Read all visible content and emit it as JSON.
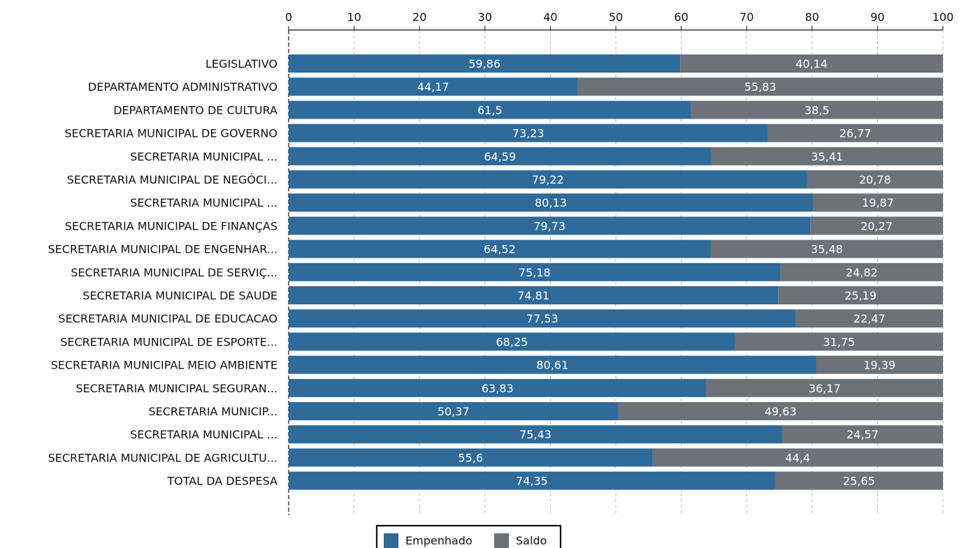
{
  "chart_data": {
    "type": "bar",
    "orientation": "horizontal",
    "stacked": true,
    "xlim": [
      0,
      100
    ],
    "x_ticks": [
      "0",
      "10",
      "20",
      "30",
      "40",
      "50",
      "60",
      "70",
      "80",
      "90",
      "100"
    ],
    "grid": "vertical dashed",
    "categories": [
      "LEGISLATIVO",
      "DEPARTAMENTO ADMINISTRATIVO",
      "DEPARTAMENTO DE CULTURA",
      "SECRETARIA MUNICIPAL DE GOVERNO",
      "SECRETARIA MUNICIPAL ...",
      "SECRETARIA MUNICIPAL DE NEGÓCI...",
      "SECRETARIA MUNICIPAL ...",
      "SECRETARIA MUNICIPAL DE FINANÇAS",
      "SECRETARIA MUNICIPAL DE ENGENHAR...",
      "SECRETARIA MUNICIPAL DE SERVIÇ...",
      "SECRETARIA MUNICIPAL DE SAUDE",
      "SECRETARIA MUNICIPAL DE EDUCACAO",
      "SECRETARIA MUNICIPAL DE ESPORTE...",
      "SECRETARIA MUNICIPAL MEIO AMBIENTE",
      "SECRETARIA MUNICIPAL SEGURAN...",
      "SECRETARIA MUNICIP...",
      "SECRETARIA MUNICIPAL ...",
      "SECRETARIA MUNICIPAL DE AGRICULTU...",
      "TOTAL DA DESPESA"
    ],
    "series": [
      {
        "name": "Empenhado",
        "color": "#2e6a9a",
        "values": [
          59.86,
          44.17,
          61.5,
          73.23,
          64.59,
          79.22,
          80.13,
          79.73,
          64.52,
          75.18,
          74.81,
          77.53,
          68.25,
          80.61,
          63.83,
          50.37,
          75.43,
          55.6,
          74.35
        ],
        "labels": [
          "59,86",
          "44,17",
          "61,5",
          "73,23",
          "64,59",
          "79,22",
          "80,13",
          "79,73",
          "64,52",
          "75,18",
          "74,81",
          "77,53",
          "68,25",
          "80,61",
          "63,83",
          "50,37",
          "75,43",
          "55,6",
          "74,35"
        ]
      },
      {
        "name": "Saldo",
        "color": "#6c7278",
        "values": [
          40.14,
          55.83,
          38.5,
          26.77,
          35.41,
          20.78,
          19.87,
          20.27,
          35.48,
          24.82,
          25.19,
          22.47,
          31.75,
          19.39,
          36.17,
          49.63,
          24.57,
          44.4,
          25.65
        ],
        "labels": [
          "40,14",
          "55,83",
          "38,5",
          "26,77",
          "35,41",
          "20,78",
          "19,87",
          "20,27",
          "35,48",
          "24,82",
          "25,19",
          "22,47",
          "31,75",
          "19,39",
          "36,17",
          "49,63",
          "24,57",
          "44,4",
          "25,65"
        ]
      }
    ],
    "legend": {
      "position": "bottom",
      "entries": [
        "Empenhado",
        "Saldo"
      ]
    }
  }
}
